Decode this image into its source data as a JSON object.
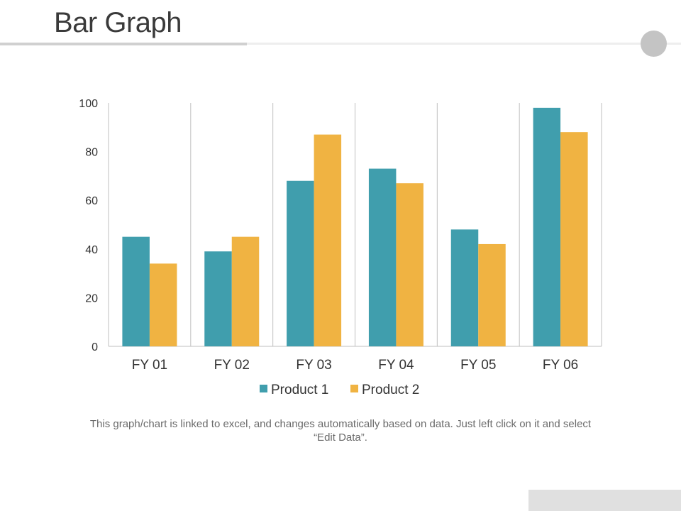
{
  "page": {
    "title": "Bar Graph",
    "caption": "This graph/chart is linked to excel, and changes automatically based on data. Just left click on it and select “Edit Data”."
  },
  "colors": {
    "product1": "#409ead",
    "product2": "#f0b342",
    "gridline": "#bfbfbf",
    "title": "#3a3a3a"
  },
  "chart_data": {
    "type": "bar",
    "title": "",
    "xlabel": "",
    "ylabel": "",
    "categories": [
      "FY 01",
      "FY 02",
      "FY 03",
      "FY 04",
      "FY 05",
      "FY 06"
    ],
    "series": [
      {
        "name": "Product 1",
        "values": [
          45,
          39,
          68,
          73,
          48,
          98
        ]
      },
      {
        "name": "Product 2",
        "values": [
          34,
          45,
          87,
          67,
          42,
          88
        ]
      }
    ],
    "ylim": [
      0,
      100
    ],
    "yticks": [
      "0",
      "20",
      "40",
      "60",
      "80",
      "100"
    ],
    "grid": "vertical category separators",
    "legend": "bottom"
  }
}
